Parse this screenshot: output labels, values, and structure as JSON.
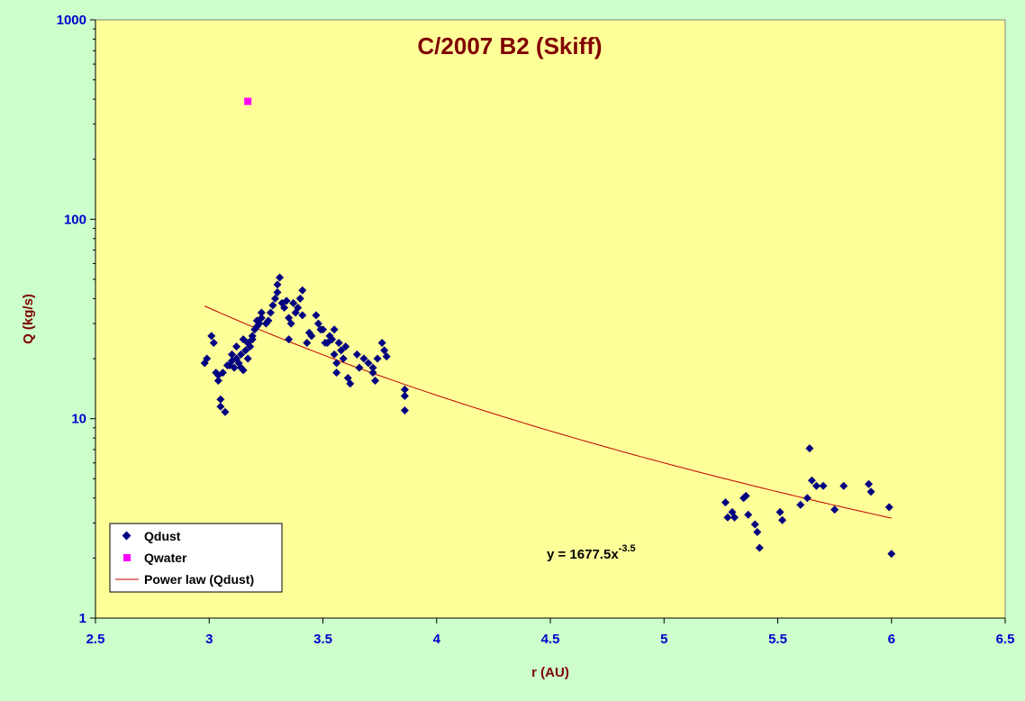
{
  "colors": {
    "page_bg": "#ccffcc",
    "plot_bg": "#ffff99",
    "title": "#800000",
    "tick_labels": "#0000cc",
    "dust": "#000080",
    "water": "#ff00ff",
    "fit": "#c00000"
  },
  "chart_data": {
    "type": "scatter",
    "title": "C/2007 B2 (Skiff)",
    "xlabel": "r (AU)",
    "ylabel": "Q (kg/s)",
    "xlim": [
      2.5,
      6.5
    ],
    "ylim": [
      1,
      1000
    ],
    "yscale": "log",
    "grid": false,
    "legend_position": "bottom-left",
    "xticks": [
      2.5,
      3,
      3.5,
      4,
      4.5,
      5,
      5.5,
      6,
      6.5
    ],
    "xtick_labels": [
      "2.5",
      "3",
      "3.5",
      "4",
      "4.5",
      "5",
      "5.5",
      "6",
      "6.5"
    ],
    "yticks": [
      1,
      10,
      100,
      1000
    ],
    "ytick_labels": [
      "1",
      "10",
      "100",
      "1000"
    ],
    "series": [
      {
        "name": "Qdust",
        "marker": "diamond",
        "points": [
          [
            2.98,
            19.0
          ],
          [
            2.99,
            20.0
          ],
          [
            3.01,
            26.0
          ],
          [
            3.02,
            24.0
          ],
          [
            3.03,
            17.0
          ],
          [
            3.04,
            15.5
          ],
          [
            3.04,
            16.5
          ],
          [
            3.05,
            12.5
          ],
          [
            3.05,
            11.5
          ],
          [
            3.06,
            17.0
          ],
          [
            3.07,
            10.8
          ],
          [
            3.08,
            18.5
          ],
          [
            3.09,
            18.5
          ],
          [
            3.1,
            19.5
          ],
          [
            3.1,
            21.0
          ],
          [
            3.11,
            18.0
          ],
          [
            3.12,
            20.0
          ],
          [
            3.12,
            23.0
          ],
          [
            3.13,
            19.0
          ],
          [
            3.14,
            18.0
          ],
          [
            3.14,
            21.0
          ],
          [
            3.15,
            17.5
          ],
          [
            3.15,
            25.0
          ],
          [
            3.16,
            22.0
          ],
          [
            3.17,
            24.0
          ],
          [
            3.17,
            20.0
          ],
          [
            3.18,
            23.0
          ],
          [
            3.19,
            26.0
          ],
          [
            3.19,
            25.0
          ],
          [
            3.2,
            28.0
          ],
          [
            3.21,
            29.0
          ],
          [
            3.21,
            31.0
          ],
          [
            3.22,
            30.0
          ],
          [
            3.23,
            34.0
          ],
          [
            3.23,
            32.0
          ],
          [
            3.25,
            30.0
          ],
          [
            3.26,
            31.0
          ],
          [
            3.27,
            34.0
          ],
          [
            3.28,
            37.0
          ],
          [
            3.29,
            40.0
          ],
          [
            3.3,
            43.0
          ],
          [
            3.3,
            47.0
          ],
          [
            3.31,
            51.0
          ],
          [
            3.32,
            38.0
          ],
          [
            3.33,
            36.0
          ],
          [
            3.34,
            39.0
          ],
          [
            3.35,
            32.0
          ],
          [
            3.35,
            25.0
          ],
          [
            3.36,
            30.0
          ],
          [
            3.37,
            38.0
          ],
          [
            3.38,
            34.0
          ],
          [
            3.39,
            36.0
          ],
          [
            3.4,
            40.0
          ],
          [
            3.41,
            44.0
          ],
          [
            3.41,
            33.0
          ],
          [
            3.43,
            24.0
          ],
          [
            3.44,
            27.0
          ],
          [
            3.45,
            26.0
          ],
          [
            3.47,
            33.0
          ],
          [
            3.48,
            30.0
          ],
          [
            3.49,
            28.0
          ],
          [
            3.5,
            28.0
          ],
          [
            3.51,
            24.0
          ],
          [
            3.52,
            24.0
          ],
          [
            3.53,
            26.0
          ],
          [
            3.54,
            25.0
          ],
          [
            3.55,
            28.0
          ],
          [
            3.55,
            21.0
          ],
          [
            3.56,
            19.0
          ],
          [
            3.56,
            17.0
          ],
          [
            3.57,
            24.0
          ],
          [
            3.58,
            22.0
          ],
          [
            3.59,
            20.0
          ],
          [
            3.6,
            23.0
          ],
          [
            3.61,
            16.0
          ],
          [
            3.62,
            15.0
          ],
          [
            3.65,
            21.0
          ],
          [
            3.66,
            18.0
          ],
          [
            3.68,
            20.0
          ],
          [
            3.7,
            19.0
          ],
          [
            3.72,
            18.0
          ],
          [
            3.72,
            17.0
          ],
          [
            3.73,
            15.5
          ],
          [
            3.74,
            20.0
          ],
          [
            3.76,
            24.0
          ],
          [
            3.77,
            22.0
          ],
          [
            3.78,
            20.5
          ],
          [
            3.86,
            14.0
          ],
          [
            3.86,
            13.0
          ],
          [
            3.86,
            11.0
          ],
          [
            5.27,
            3.8
          ],
          [
            5.28,
            3.2
          ],
          [
            5.3,
            3.4
          ],
          [
            5.31,
            3.2
          ],
          [
            5.35,
            4.0
          ],
          [
            5.36,
            4.1
          ],
          [
            5.37,
            3.3
          ],
          [
            5.4,
            2.95
          ],
          [
            5.41,
            2.7
          ],
          [
            5.42,
            2.25
          ],
          [
            5.51,
            3.4
          ],
          [
            5.52,
            3.1
          ],
          [
            5.6,
            3.7
          ],
          [
            5.63,
            4.0
          ],
          [
            5.64,
            7.1
          ],
          [
            5.65,
            4.9
          ],
          [
            5.67,
            4.6
          ],
          [
            5.7,
            4.6
          ],
          [
            5.75,
            3.5
          ],
          [
            5.79,
            4.6
          ],
          [
            5.9,
            4.7
          ],
          [
            5.91,
            4.3
          ],
          [
            5.99,
            3.6
          ],
          [
            6.0,
            2.1
          ]
        ]
      },
      {
        "name": "Qwater",
        "marker": "square",
        "points": [
          [
            3.17,
            390
          ]
        ]
      },
      {
        "name": "Power law (Qdust)",
        "type": "line",
        "fit": {
          "a": 1677.5,
          "b": -3.5
        },
        "x_range": [
          2.98,
          6.0
        ]
      }
    ],
    "annotations": {
      "equation_main": "y = 1677.5x",
      "equation_exp": "-3.5",
      "position_data": [
        4.48,
        2.15
      ]
    }
  }
}
